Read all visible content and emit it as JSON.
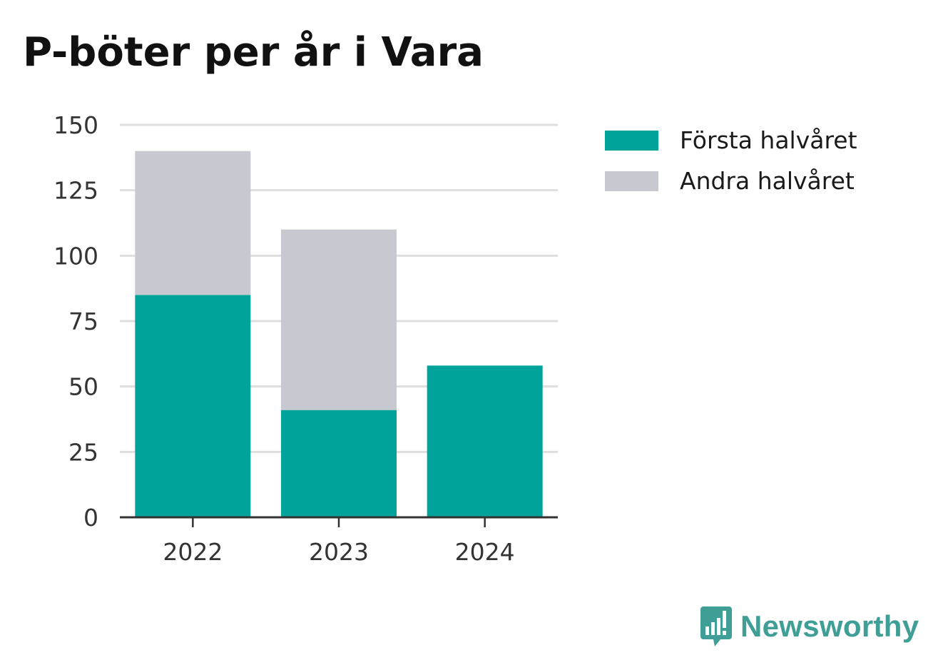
{
  "title": "P-böter per år i Vara",
  "brand": {
    "name": "Newsworthy",
    "icon": "newsworthy-logo-icon",
    "color": "#3f9e96"
  },
  "chart_data": {
    "type": "bar",
    "stacked": true,
    "title": "P-böter per år i Vara",
    "xlabel": "",
    "ylabel": "",
    "categories": [
      "2022",
      "2023",
      "2024"
    ],
    "series": [
      {
        "name": "Första halvåret",
        "color": "#00a39a",
        "values": [
          85,
          41,
          58
        ]
      },
      {
        "name": "Andra halvåret",
        "color": "#c8c8d0",
        "values": [
          55,
          69,
          0
        ]
      }
    ],
    "ylim": [
      0,
      150
    ],
    "yticks": [
      "0",
      "25",
      "50",
      "75",
      "100",
      "125",
      "150"
    ],
    "grid": true,
    "legend_position": "right"
  }
}
